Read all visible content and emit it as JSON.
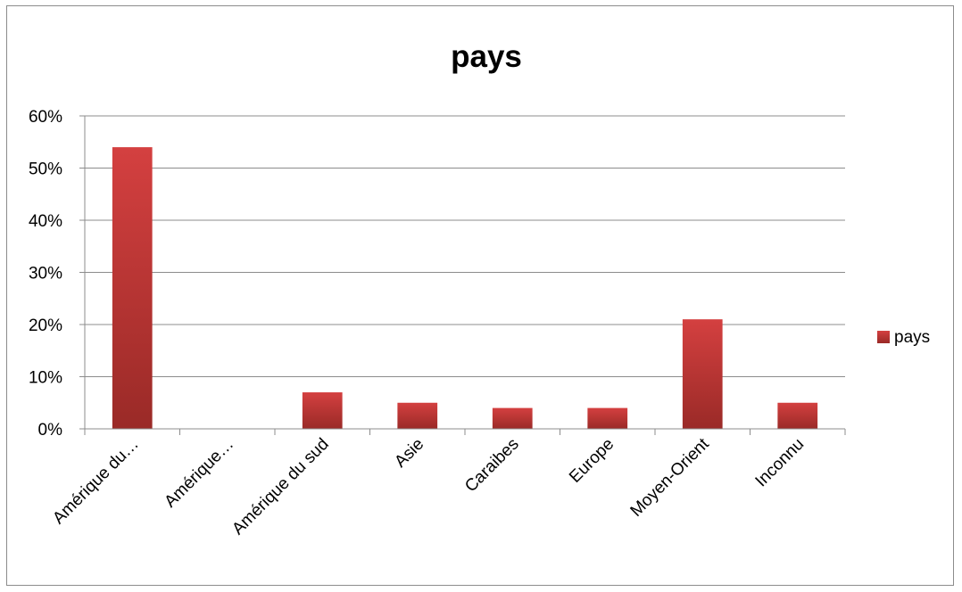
{
  "chart_data": {
    "type": "bar",
    "title": "pays",
    "categories": [
      "Amérique du…",
      "Amérique…",
      "Amérique du sud",
      "Asie",
      "Caraibes",
      "Europe",
      "Moyen-Orient",
      "Inconnu"
    ],
    "series": [
      {
        "name": "pays",
        "values": [
          54,
          0,
          7,
          5,
          4,
          4,
          21,
          5
        ]
      }
    ],
    "y_ticks": [
      "0%",
      "10%",
      "20%",
      "30%",
      "40%",
      "50%",
      "60%"
    ],
    "ylim": [
      0,
      60
    ],
    "y_unit": "percent",
    "grid": true,
    "legend_position": "right",
    "colors": {
      "bar_top": "#d44040",
      "bar_bottom": "#9a2a27",
      "grid": "#8c8c8c"
    }
  }
}
